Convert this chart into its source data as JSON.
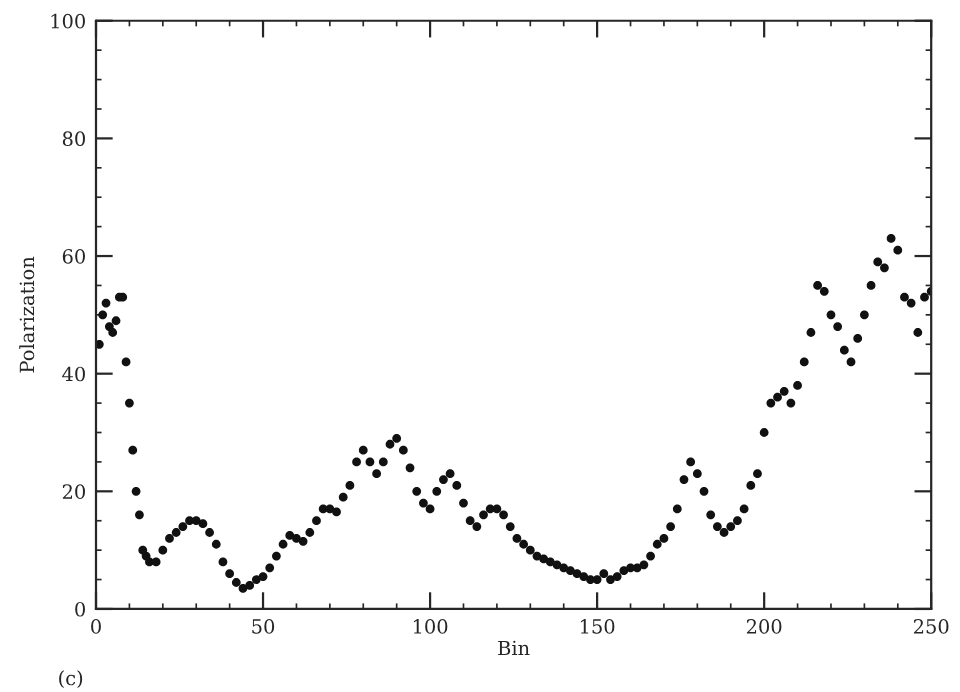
{
  "chart_data": {
    "type": "scatter",
    "xlabel": "Bin",
    "ylabel": "Polarization",
    "marker": "circle",
    "grid": false,
    "legend": false,
    "xlim": [
      0,
      250
    ],
    "xticks": [
      0,
      50,
      100,
      150,
      200,
      250
    ],
    "ylim": [
      0,
      100
    ],
    "yticks": [
      0,
      20,
      40,
      60,
      80,
      100
    ],
    "annotations": [
      "(c)"
    ],
    "series": [
      {
        "color": "#111111",
        "x": [
          1,
          2,
          3,
          4,
          5,
          6,
          7,
          8,
          9,
          10,
          11,
          12,
          13,
          14,
          15,
          16,
          18,
          20,
          22,
          24,
          26,
          28,
          30,
          32,
          34,
          36,
          38,
          40,
          42,
          44,
          46,
          48,
          50,
          52,
          54,
          56,
          58,
          60,
          62,
          64,
          66,
          68,
          70,
          72,
          74,
          76,
          78,
          80,
          82,
          84,
          86,
          88,
          90,
          92,
          94,
          96,
          98,
          100,
          102,
          104,
          106,
          108,
          110,
          112,
          114,
          116,
          118,
          120,
          122,
          124,
          126,
          128,
          130,
          132,
          134,
          136,
          138,
          140,
          142,
          144,
          146,
          148,
          150,
          152,
          154,
          156,
          158,
          160,
          162,
          164,
          166,
          168,
          170,
          172,
          174,
          176,
          178,
          180,
          182,
          184,
          186,
          188,
          190,
          192,
          194,
          196,
          198,
          200,
          202,
          204,
          206,
          208,
          210,
          212,
          214,
          216,
          218,
          220,
          222,
          224,
          226,
          228,
          230,
          232,
          234,
          236,
          238,
          240,
          242,
          244,
          246,
          248,
          250
        ],
        "values": [
          45,
          50,
          52,
          48,
          47,
          49,
          53,
          53,
          42,
          35,
          27,
          20,
          16,
          10,
          9,
          8,
          8,
          10,
          12,
          13,
          14,
          15,
          15,
          14.5,
          13,
          11,
          8,
          6,
          4.5,
          3.5,
          4,
          5,
          5.5,
          7,
          9,
          11,
          12.5,
          12,
          11.5,
          13,
          15,
          17,
          17,
          16.5,
          19,
          21,
          25,
          27,
          25,
          23,
          25,
          28,
          29,
          27,
          24,
          20,
          18,
          17,
          20,
          22,
          23,
          21,
          18,
          15,
          14,
          16,
          17,
          17,
          16,
          14,
          12,
          11,
          10,
          9,
          8.5,
          8,
          7.5,
          7,
          6.5,
          6,
          5.5,
          5,
          5,
          6,
          5,
          5.5,
          6.5,
          7,
          7,
          7.5,
          9,
          11,
          12,
          14,
          17,
          22,
          25,
          23,
          20,
          16,
          14,
          13,
          14,
          15,
          17,
          21,
          23,
          30,
          35,
          36,
          37,
          35,
          38,
          42,
          47,
          55,
          54,
          50,
          48,
          44,
          42,
          46,
          50,
          55,
          59,
          58,
          63,
          61,
          53,
          52,
          47,
          53,
          54
        ]
      }
    ]
  }
}
